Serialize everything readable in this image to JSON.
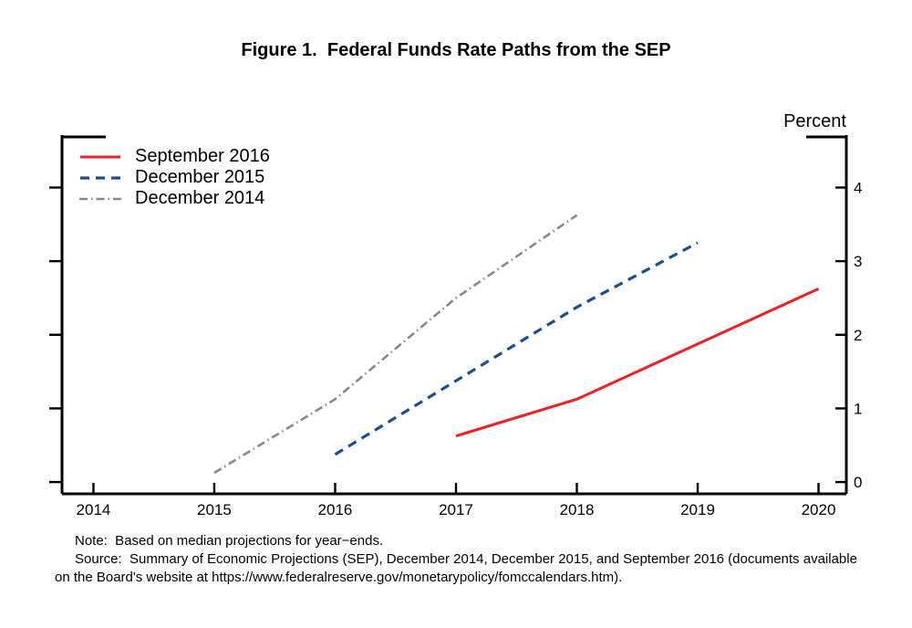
{
  "title": "Figure 1.  Federal Funds Rate Paths from the SEP",
  "axis": {
    "unit_label": "Percent"
  },
  "chart_data": {
    "type": "line",
    "title": "Figure 1.  Federal Funds Rate Paths from the SEP",
    "xlabel": "",
    "ylabel": "Percent",
    "xlim": [
      2013.74,
      2020.23
    ],
    "ylim": [
      -0.16,
      4.7
    ],
    "x_ticks": [
      "2014",
      "2015",
      "2016",
      "2017",
      "2018",
      "2019",
      "2020"
    ],
    "x_tick_values": [
      2014,
      2015,
      2016,
      2017,
      2018,
      2019,
      2020
    ],
    "y_ticks": [
      "0",
      "1",
      "2",
      "3",
      "4"
    ],
    "y_tick_values": [
      0,
      1,
      2,
      3,
      4
    ],
    "grid": false,
    "legend_position": "upper left",
    "series": [
      {
        "name": "September 2016",
        "color": "#ed2024",
        "style": "solid",
        "x": [
          2017,
          2018,
          2019,
          2020
        ],
        "y": [
          0.625,
          1.125,
          1.875,
          2.625
        ]
      },
      {
        "name": "December 2015",
        "color": "#1c4e8d",
        "style": "dashed",
        "x": [
          2016,
          2017,
          2018,
          2019
        ],
        "y": [
          0.375,
          1.375,
          2.375,
          3.25
        ]
      },
      {
        "name": "December 2014",
        "color": "#85898c",
        "style": "dashdot",
        "x": [
          2015,
          2016,
          2017,
          2018
        ],
        "y": [
          0.125,
          1.125,
          2.5,
          3.625
        ]
      }
    ]
  },
  "notes": {
    "line1": "Note:  Based on median projections for year−ends.",
    "line2": "Source:  Summary of Economic Projections (SEP), December 2014, December 2015, and September 2016 (documents available",
    "line3": "on the Board's website at https://www.federalreserve.gov/monetarypolicy/fomccalendars.htm)."
  }
}
